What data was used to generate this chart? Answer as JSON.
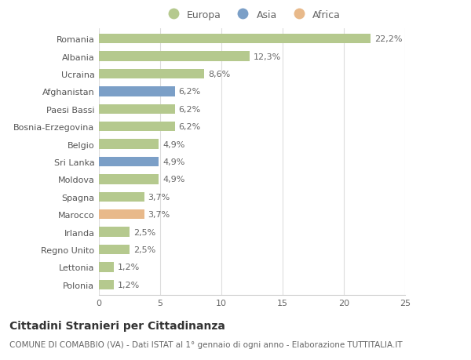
{
  "categories": [
    "Romania",
    "Albania",
    "Ucraina",
    "Afghanistan",
    "Paesi Bassi",
    "Bosnia-Erzegovina",
    "Belgio",
    "Sri Lanka",
    "Moldova",
    "Spagna",
    "Marocco",
    "Irlanda",
    "Regno Unito",
    "Lettonia",
    "Polonia"
  ],
  "values": [
    22.2,
    12.3,
    8.6,
    6.2,
    6.2,
    6.2,
    4.9,
    4.9,
    4.9,
    3.7,
    3.7,
    2.5,
    2.5,
    1.2,
    1.2
  ],
  "continents": [
    "Europa",
    "Europa",
    "Europa",
    "Asia",
    "Europa",
    "Europa",
    "Europa",
    "Asia",
    "Europa",
    "Europa",
    "Africa",
    "Europa",
    "Europa",
    "Europa",
    "Europa"
  ],
  "labels": [
    "22,2%",
    "12,3%",
    "8,6%",
    "6,2%",
    "6,2%",
    "6,2%",
    "4,9%",
    "4,9%",
    "4,9%",
    "3,7%",
    "3,7%",
    "2,5%",
    "2,5%",
    "1,2%",
    "1,2%"
  ],
  "colors": {
    "Europa": "#b5c98e",
    "Asia": "#7b9fc7",
    "Africa": "#e8b98a"
  },
  "legend_entries": [
    "Europa",
    "Asia",
    "Africa"
  ],
  "legend_colors": [
    "#b5c98e",
    "#7b9fc7",
    "#e8b98a"
  ],
  "xlim": [
    0,
    25
  ],
  "xticks": [
    0,
    5,
    10,
    15,
    20,
    25
  ],
  "title": "Cittadini Stranieri per Cittadinanza",
  "subtitle": "COMUNE DI COMABBIO (VA) - Dati ISTAT al 1° gennaio di ogni anno - Elaborazione TUTTITALIA.IT",
  "bg_color": "#ffffff",
  "grid_color": "#dddddd",
  "bar_height": 0.55,
  "label_fontsize": 8,
  "tick_fontsize": 8,
  "title_fontsize": 10,
  "subtitle_fontsize": 7.5,
  "legend_fontsize": 9
}
